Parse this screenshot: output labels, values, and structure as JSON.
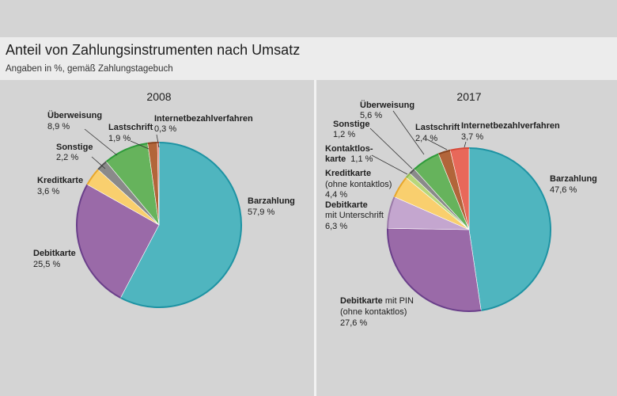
{
  "header": {
    "title": "Anteil von Zahlungsinstrumenten nach Umsatz",
    "subtitle": "Angaben in %, gemäß Zahlungstagebuch"
  },
  "chart_data": [
    {
      "type": "pie",
      "title": "2008",
      "slices": [
        {
          "name": "Barzahlung",
          "value": 57.9,
          "value_label": "57,9 %",
          "color": "#4fb5bf",
          "edge": "#1e93a3"
        },
        {
          "name": "Debitkarte",
          "value": 25.5,
          "value_label": "25,5 %",
          "color": "#9a6aa8",
          "edge": "#6a3f8a"
        },
        {
          "name": "Kreditkarte",
          "value": 3.6,
          "value_label": "3,6 %",
          "color": "#f9cf6e",
          "edge": "#e8a72b"
        },
        {
          "name": "Sonstige",
          "value": 2.2,
          "value_label": "2,2 %",
          "color": "#8a8a8a",
          "edge": "#555555"
        },
        {
          "name": "Überweisung",
          "value": 8.9,
          "value_label": "8,9 %",
          "color": "#66b35c",
          "edge": "#2e9b3a"
        },
        {
          "name": "Lastschrift",
          "value": 1.9,
          "value_label": "1,9 %",
          "color": "#b2653a",
          "edge": "#8a4520"
        },
        {
          "name": "Internetbezahlverfahren",
          "value": 0.3,
          "value_label": "0,3 %",
          "color": "#e8685a",
          "edge": "#d64a3a"
        }
      ]
    },
    {
      "type": "pie",
      "title": "2017",
      "slices": [
        {
          "name": "Barzahlung",
          "value": 47.6,
          "value_label": "47,6 %",
          "color": "#4fb5bf",
          "edge": "#1e93a3"
        },
        {
          "name": "Debitkarte mit PIN (ohne kontaktlos)",
          "value": 27.6,
          "value_label": "27,6 %",
          "color": "#9a6aa8",
          "edge": "#6a3f8a"
        },
        {
          "name": "Debitkarte mit Unterschrift",
          "value": 6.3,
          "value_label": "6,3 %",
          "color": "#c4a6cf",
          "edge": "#9a7aa8"
        },
        {
          "name": "Kreditkarte (ohne kontaktlos)",
          "value": 4.4,
          "value_label": "4,4 %",
          "color": "#f9cf6e",
          "edge": "#e8a72b"
        },
        {
          "name": "Kontaktloskarte",
          "value": 1.1,
          "value_label": "1,1 %",
          "color": "#b7d77a",
          "edge": "#8fb84a"
        },
        {
          "name": "Sonstige",
          "value": 1.2,
          "value_label": "1,2 %",
          "color": "#8a8a8a",
          "edge": "#555555"
        },
        {
          "name": "Überweisung",
          "value": 5.6,
          "value_label": "5,6 %",
          "color": "#66b35c",
          "edge": "#2e9b3a"
        },
        {
          "name": "Lastschrift",
          "value": 2.4,
          "value_label": "2,4 %",
          "color": "#b2653a",
          "edge": "#8a4520"
        },
        {
          "name": "Internetbezahlverfahren",
          "value": 3.7,
          "value_label": "3,7 %",
          "color": "#e8685a",
          "edge": "#d64a3a"
        }
      ]
    }
  ],
  "labels_2008": {
    "ueberweisung": "Überweisung",
    "ueberweisung_v": "8,9 %",
    "lastschrift": "Lastschrift",
    "lastschrift_v": "1,9 %",
    "internet": "Internetbezahlverfahren",
    "internet_v": "0,3 %",
    "sonstige": "Sonstige",
    "sonstige_v": "2,2 %",
    "kreditkarte": "Kreditkarte",
    "kreditkarte_v": "3,6 %",
    "barzahlung": "Barzahlung",
    "barzahlung_v": "57,9 %",
    "debitkarte": "Debitkarte",
    "debitkarte_v": "25,5 %"
  },
  "labels_2017": {
    "ueberweisung": "Überweisung",
    "ueberweisung_v": "5,6 %",
    "sonstige": "Sonstige",
    "sonstige_v": "1,2 %",
    "lastschrift": "Lastschrift",
    "lastschrift_v": "2,4 %",
    "internet": "Internetbezahlverfahren",
    "internet_v": "3,7 %",
    "kontaktlos_1": "Kontaktlos-",
    "kontaktlos_2": "karte",
    "kontaktlos_v": "1,1 %",
    "kredit_1": "Kreditkarte",
    "kredit_2": "(ohne kontaktlos)",
    "kredit_v": "4,4 %",
    "debu_1": "Debitkarte",
    "debu_2": "mit Unterschrift",
    "debu_v": "6,3 %",
    "barzahlung": "Barzahlung",
    "barzahlung_v": "47,6 %",
    "debpin_1": "Debitkarte",
    "debpin_1b": " mit PIN",
    "debpin_2": "(ohne kontaktlos)",
    "debpin_v": "27,6 %"
  }
}
